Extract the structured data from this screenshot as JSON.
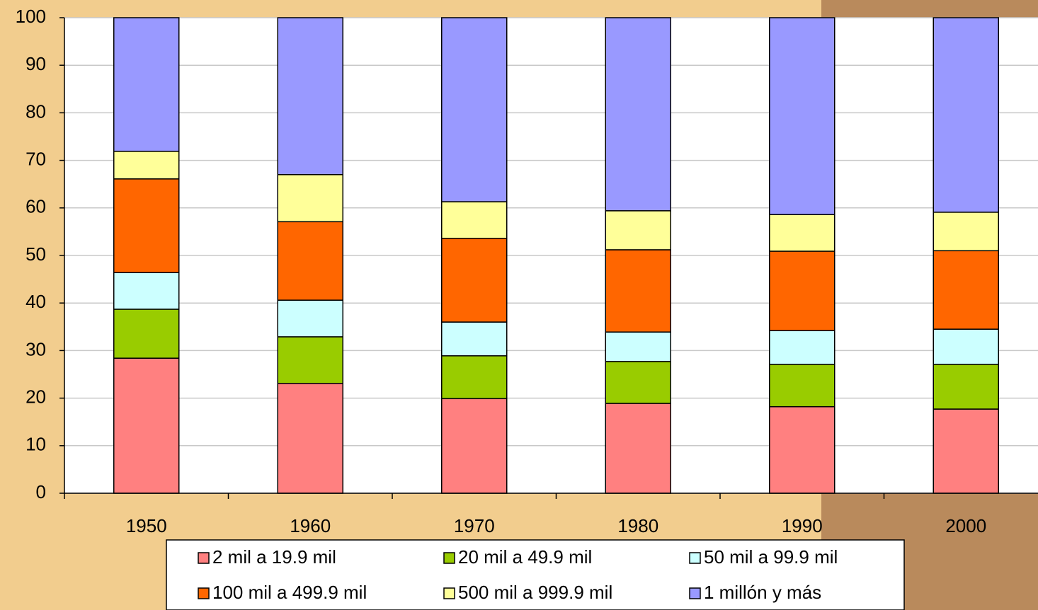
{
  "chart_data": {
    "type": "stacked-bar",
    "categories": [
      "1950",
      "1960",
      "1970",
      "1980",
      "1990",
      "2000"
    ],
    "series": [
      {
        "name": "2 mil a 19.9 mil",
        "color": "#ff8080",
        "values": [
          28.4,
          23.1,
          19.9,
          18.9,
          18.2,
          17.7
        ]
      },
      {
        "name": "20 mil a 49.9 mil",
        "color": "#99cc00",
        "values": [
          10.3,
          9.8,
          9.0,
          8.8,
          8.9,
          9.4
        ]
      },
      {
        "name": "50 mil a 99.9 mil",
        "color": "#ccffff",
        "values": [
          7.7,
          7.7,
          7.1,
          6.2,
          7.1,
          7.4
        ]
      },
      {
        "name": "100 mil a 499.9 mil",
        "color": "#ff6600",
        "values": [
          19.7,
          16.5,
          17.6,
          17.3,
          16.7,
          16.5
        ]
      },
      {
        "name": "500 mil a 999.9 mil",
        "color": "#ffff99",
        "values": [
          5.8,
          9.9,
          7.7,
          8.2,
          7.7,
          8.1
        ]
      },
      {
        "name": "1 millón y más",
        "color": "#9999ff",
        "values": [
          28.1,
          33.0,
          38.7,
          40.6,
          41.4,
          40.9
        ]
      }
    ],
    "ylim": [
      0,
      100
    ],
    "yticks": [
      0,
      10,
      20,
      30,
      40,
      50,
      60,
      70,
      80,
      90,
      100
    ],
    "grid": true
  }
}
